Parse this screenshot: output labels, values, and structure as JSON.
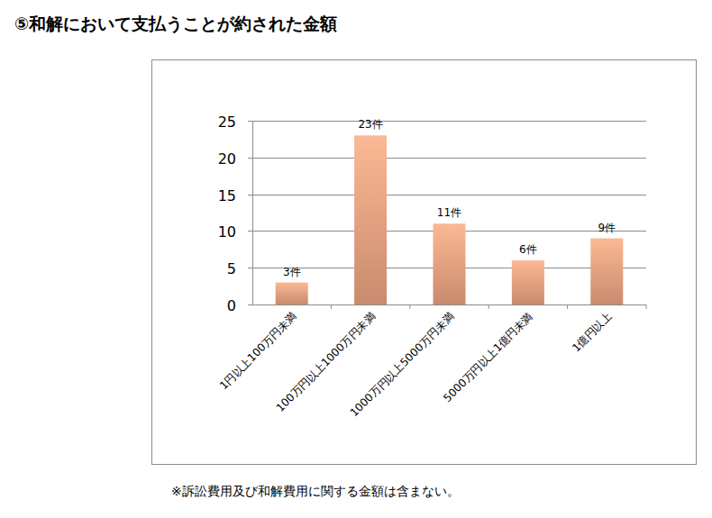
{
  "chart_data": {
    "type": "bar",
    "title": "⑤和解において支払うことが約された金額",
    "categories": [
      "1円以上100万円未満",
      "100万円以上1000万円未満",
      "1000万円以上5000万円未満",
      "5000万円以上1億円未満",
      "1億円以上"
    ],
    "values": [
      3,
      23,
      11,
      6,
      9
    ],
    "value_labels": [
      "3件",
      "23件",
      "11件",
      "6件",
      "9件"
    ],
    "data_labels": true,
    "color": "#fbb994",
    "ylim": [
      0,
      25
    ],
    "yticks": [
      0,
      5,
      10,
      15,
      20,
      25
    ],
    "grid": true,
    "annotations": [
      "※訴訟費用及び和解費用に関する金額は含まない。"
    ]
  }
}
